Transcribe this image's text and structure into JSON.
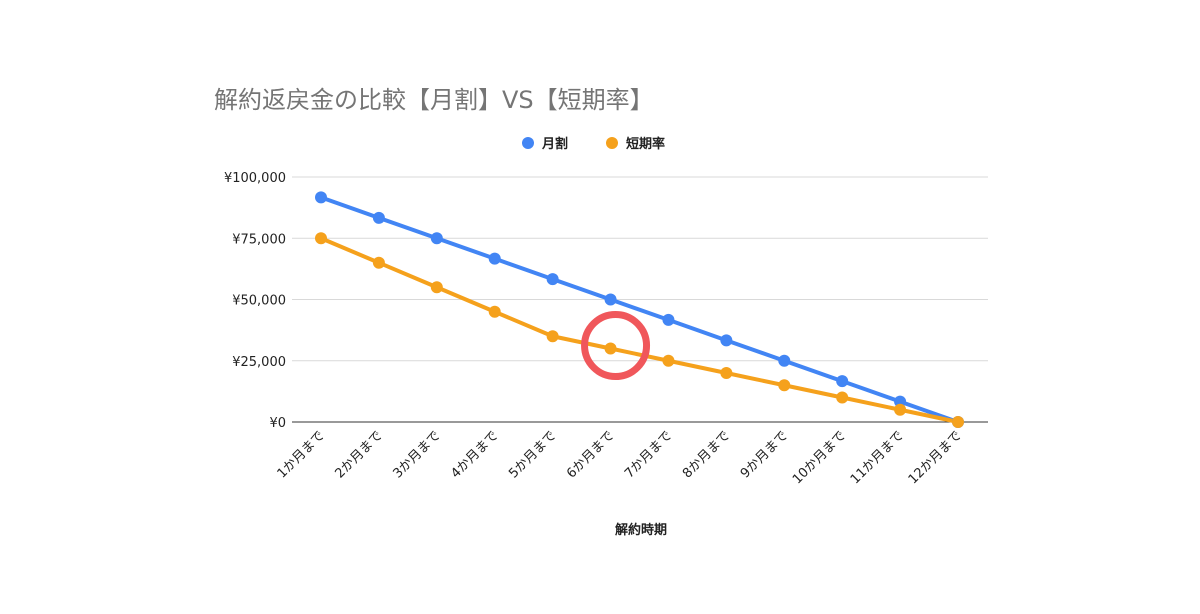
{
  "chart_data": {
    "type": "line",
    "title": "解約返戻金の比較【月割】VS【短期率】",
    "xlabel": "解約時期",
    "ylabel": "",
    "categories": [
      "1か月まで",
      "2か月まで",
      "3か月まで",
      "4か月まで",
      "5か月まで",
      "6か月まで",
      "7か月まで",
      "8か月まで",
      "9か月まで",
      "10か月まで",
      "11か月まで",
      "12か月まで"
    ],
    "ylim": [
      0,
      100000
    ],
    "yticks": [
      {
        "value": 0,
        "label": "¥0"
      },
      {
        "value": 25000,
        "label": "¥25,000"
      },
      {
        "value": 50000,
        "label": "¥50,000"
      },
      {
        "value": 75000,
        "label": "¥75,000"
      },
      {
        "value": 100000,
        "label": "¥100,000"
      }
    ],
    "grid": true,
    "legend_position": "top",
    "series": [
      {
        "name": "月割",
        "color": "#4285f4",
        "values": [
          91667,
          83333,
          75000,
          66667,
          58333,
          50000,
          41667,
          33333,
          25000,
          16667,
          8333,
          0
        ]
      },
      {
        "name": "短期率",
        "color": "#f5a11c",
        "values": [
          75000,
          65000,
          55000,
          45000,
          35000,
          30000,
          25000,
          20000,
          15000,
          10000,
          5000,
          0
        ]
      }
    ],
    "annotations": [
      {
        "type": "circle-highlight",
        "category": "6か月まで",
        "value": 30000,
        "color": "#f0575b"
      }
    ]
  }
}
